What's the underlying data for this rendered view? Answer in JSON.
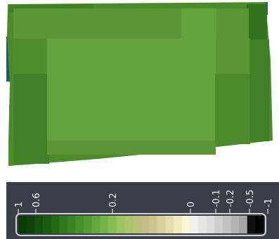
{
  "map": {
    "title": "",
    "colors": {
      "field_base": "#4d8a2c",
      "field_mid": "#5b9535",
      "field_center": "#65a23e",
      "field_edge": "#437f27",
      "field_dark": "#33721f",
      "water": "#1c5c6e"
    }
  },
  "legend": {
    "tick_labels": [
      "1",
      "0.6",
      "0.2",
      "0",
      "-0.1",
      "-0.2",
      "-0.5",
      "-1"
    ],
    "swatches": [
      "#0b3a06",
      "#0f4408",
      "#15500b",
      "#1c5c10",
      "#256916",
      "#2f761c",
      "#3a8323",
      "#46902b",
      "#539c34",
      "#62a83d",
      "#73b347",
      "#86bd53",
      "#9ac55f",
      "#a9c46a",
      "#b8c079",
      "#c4bd86",
      "#ccc48e",
      "#d8d19c",
      "#e4deac",
      "#efebbd",
      "#f7f5d2",
      "#f0f0ec",
      "#e6e6e6",
      "#dcdcdc",
      "#cfcfcf",
      "#c2c2c2",
      "#b4b4b4",
      "#a6a6a6",
      "#101010",
      "#050505"
    ],
    "colors": {
      "background": "#3b3d48",
      "frame": "#cfd0d4",
      "text": "#ffffff"
    }
  }
}
